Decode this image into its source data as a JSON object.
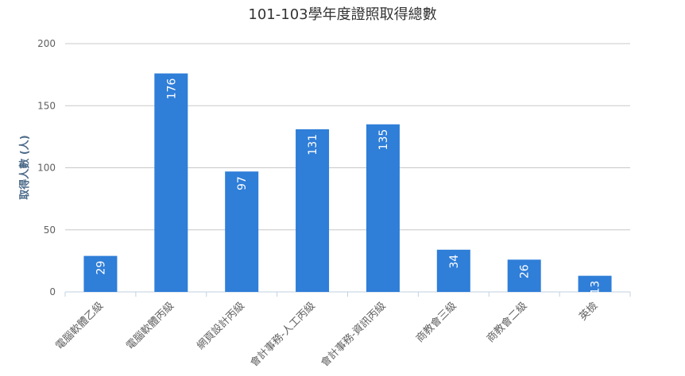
{
  "chart_data": {
    "type": "bar",
    "title": "101-103學年度證照取得總數",
    "xlabel": "",
    "ylabel": "取得人數 (人)",
    "categories": [
      "電腦軟體乙級",
      "電腦軟體丙級",
      "網頁設計丙級",
      "會計事務-人工丙級",
      "會計事務-資訊丙級",
      "商教會三級",
      "商教會二級",
      "英檢"
    ],
    "values": [
      29,
      176,
      97,
      131,
      135,
      34,
      26,
      13
    ],
    "data_labels": [
      "29",
      "176",
      "97",
      "131",
      "135",
      "34",
      "26",
      "13"
    ],
    "ylim": [
      0,
      200
    ],
    "yticks": [
      "0",
      "50",
      "100",
      "150",
      "200"
    ],
    "ytick_values": [
      0,
      50,
      100,
      150,
      200
    ],
    "grid": true,
    "bar_color": "#2f7ed8",
    "legend": "none"
  }
}
